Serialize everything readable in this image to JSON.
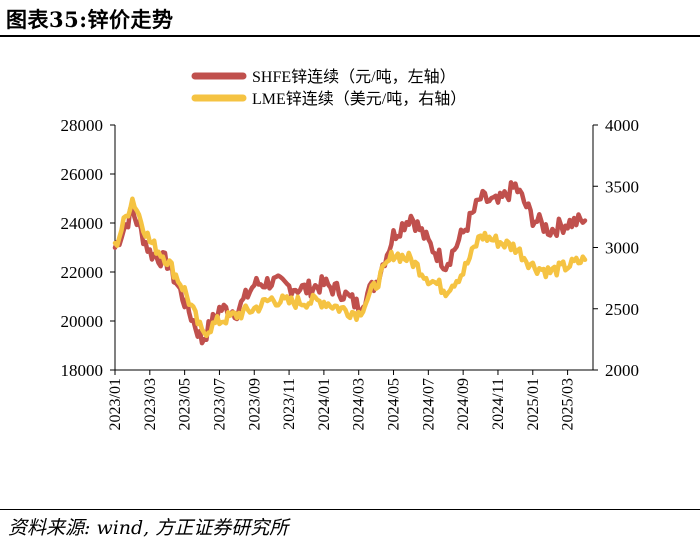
{
  "title": "图表35:锌价走势",
  "source": "资料来源: wind, 方正证券研究所",
  "colors": {
    "shfe": "#C0504D",
    "lme": "#F5C342",
    "axis": "#000000"
  },
  "chart_data": {
    "type": "line",
    "title": "锌价走势",
    "legend_position": "top-center",
    "grid": false,
    "y_left": {
      "label": "",
      "range": [
        18000,
        28000
      ],
      "ticks": [
        18000,
        20000,
        22000,
        24000,
        26000,
        28000
      ]
    },
    "y_right": {
      "label": "",
      "range": [
        2000,
        4000
      ],
      "ticks": [
        2000,
        2500,
        3000,
        3500,
        4000
      ]
    },
    "x_range": [
      "2023/01",
      "2025/04"
    ],
    "x_ticks": [
      "2023/01",
      "2023/03",
      "2023/05",
      "2023/07",
      "2023/09",
      "2023/11",
      "2024/01",
      "2024/03",
      "2024/05",
      "2024/07",
      "2024/09",
      "2024/11",
      "2025/01",
      "2025/03"
    ],
    "series": [
      {
        "name": "SHFE锌连续（元/吨，左轴）",
        "axis": "left",
        "x": [
          "2023/01",
          "2023/02",
          "2023/03",
          "2023/04",
          "2023/05",
          "2023/06",
          "2023/07",
          "2023/08",
          "2023/09",
          "2023/10",
          "2023/11",
          "2023/12",
          "2024/01",
          "2024/02",
          "2024/03",
          "2024/04",
          "2024/05",
          "2024/06",
          "2024/07",
          "2024/08",
          "2024/09",
          "2024/10",
          "2024/11",
          "2024/12",
          "2025/01",
          "2025/02",
          "2025/03",
          "2025/04"
        ],
        "values": [
          23000,
          24500,
          22800,
          22400,
          20800,
          19200,
          20500,
          20400,
          21500,
          21600,
          21400,
          21300,
          21500,
          21200,
          20600,
          21600,
          23500,
          24300,
          23200,
          22300,
          23600,
          25000,
          24800,
          25500,
          24200,
          23700,
          24000,
          24100
        ]
      },
      {
        "name": "LME锌连续（美元/吨，右轴）",
        "axis": "right",
        "x": [
          "2023/01",
          "2023/02",
          "2023/03",
          "2023/04",
          "2023/05",
          "2023/06",
          "2023/07",
          "2023/08",
          "2023/09",
          "2023/10",
          "2023/11",
          "2023/12",
          "2024/01",
          "2024/02",
          "2024/03",
          "2024/04",
          "2024/05",
          "2024/06",
          "2024/07",
          "2024/08",
          "2024/09",
          "2024/10",
          "2024/11",
          "2024/12",
          "2025/01",
          "2025/02",
          "2025/03",
          "2025/04"
        ],
        "values": [
          3000,
          3400,
          3050,
          2900,
          2650,
          2300,
          2400,
          2450,
          2500,
          2580,
          2550,
          2560,
          2560,
          2500,
          2460,
          2700,
          2950,
          2900,
          2750,
          2650,
          2800,
          3100,
          3050,
          3000,
          2850,
          2800,
          2850,
          2900
        ]
      }
    ]
  }
}
